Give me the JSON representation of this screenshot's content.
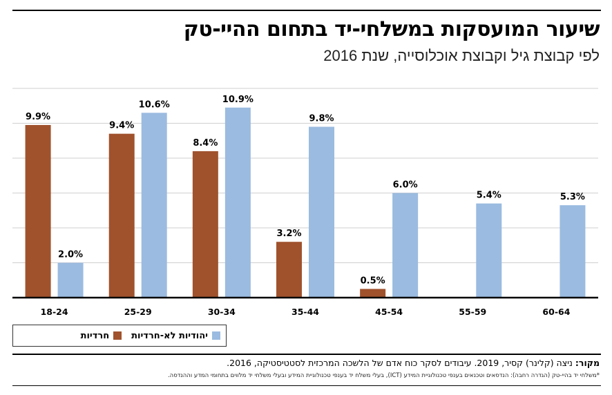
{
  "chart_data": {
    "type": "bar",
    "title": "שיעור המועסקות במשלחי-יד בתחום ההיי-טק",
    "subtitle": "לפי קבוצת גיל וקבוצת אוכלוסייה, שנת 2016",
    "categories": [
      "18-24",
      "25-29",
      "30-34",
      "35-44",
      "45-54",
      "55-59",
      "60-64"
    ],
    "series": [
      {
        "name": "חרדיות",
        "color": "#a0522d",
        "values": [
          9.9,
          9.4,
          8.4,
          3.2,
          0.5,
          null,
          null
        ],
        "labels": [
          "9.9%",
          "9.4%",
          "8.4%",
          "3.2%",
          "0.5%",
          "",
          ""
        ]
      },
      {
        "name": "יהודיות לא-חרדיות",
        "color": "#9bbbe0",
        "values": [
          2.0,
          10.6,
          10.9,
          9.8,
          6.0,
          5.4,
          5.3
        ],
        "labels": [
          "2.0%",
          "10.6%",
          "10.9%",
          "9.8%",
          "6.0%",
          "5.4%",
          "5.3%"
        ]
      }
    ],
    "ylim": [
      0,
      12
    ],
    "grid": true,
    "legend_position": "bottom-left"
  },
  "source": {
    "label": "מקור:",
    "text": "ניצה (קלינר) קסיר, 2019. עיבודים לסקר כוח אדם של הלשכה המרכזית לסטטיסטיקה, 2016."
  },
  "footnote": "*משלחי יד בהיי-טק (הגדרה רחבה): הנדסאים וטכנאים בענפי טכנולוגיית המידע (ICT), בעלי משלח יד בענפי טכנולוגיית המידע ובעלי משלחי יד מלווים בתחומי המדע וההנדסה."
}
